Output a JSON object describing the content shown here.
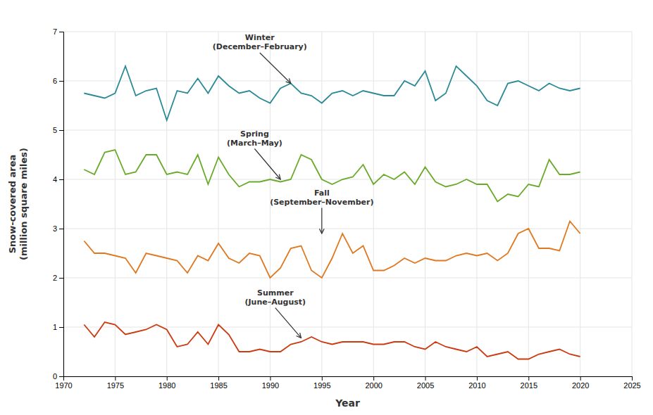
{
  "chart_data": {
    "type": "line",
    "x": [
      1972,
      1973,
      1974,
      1975,
      1976,
      1977,
      1978,
      1979,
      1980,
      1981,
      1982,
      1983,
      1984,
      1985,
      1986,
      1987,
      1988,
      1989,
      1990,
      1991,
      1992,
      1993,
      1994,
      1995,
      1996,
      1997,
      1998,
      1999,
      2000,
      2001,
      2002,
      2003,
      2004,
      2005,
      2006,
      2007,
      2008,
      2009,
      2010,
      2011,
      2012,
      2013,
      2014,
      2015,
      2016,
      2017,
      2018,
      2019,
      2020
    ],
    "series": [
      {
        "color": "#2b8a96",
        "values": [
          5.75,
          5.7,
          5.65,
          5.75,
          6.3,
          5.7,
          5.8,
          5.85,
          5.2,
          5.8,
          5.75,
          6.05,
          5.75,
          6.1,
          5.9,
          5.75,
          5.8,
          5.65,
          5.55,
          5.85,
          5.95,
          5.75,
          5.7,
          5.55,
          5.75,
          5.8,
          5.7,
          5.8,
          5.75,
          5.7,
          5.7,
          6.0,
          5.9,
          6.2,
          5.6,
          5.75,
          6.3,
          6.1,
          5.9,
          5.6,
          5.5,
          5.95,
          6.0,
          5.9,
          5.8,
          5.95,
          5.85,
          5.8,
          5.85
        ]
      },
      {
        "color": "#6aaa2a",
        "values": [
          4.2,
          4.1,
          4.55,
          4.6,
          4.1,
          4.15,
          4.5,
          4.5,
          4.1,
          4.15,
          4.1,
          4.5,
          3.9,
          4.45,
          4.1,
          3.85,
          3.95,
          3.95,
          4.0,
          3.95,
          4.0,
          4.5,
          4.4,
          4.0,
          3.9,
          4.0,
          4.05,
          4.3,
          3.9,
          4.1,
          4.0,
          4.15,
          3.9,
          4.25,
          3.95,
          3.85,
          3.9,
          4.0,
          3.9,
          3.9,
          3.55,
          3.7,
          3.65,
          3.9,
          3.85,
          4.4,
          4.1,
          4.1,
          4.15
        ]
      },
      {
        "color": "#e07820",
        "values": [
          2.75,
          2.5,
          2.5,
          2.45,
          2.4,
          2.1,
          2.5,
          2.45,
          2.4,
          2.35,
          2.1,
          2.45,
          2.35,
          2.7,
          2.4,
          2.3,
          2.5,
          2.45,
          2.0,
          2.2,
          2.6,
          2.65,
          2.15,
          2.0,
          2.4,
          2.9,
          2.5,
          2.65,
          2.15,
          2.15,
          2.25,
          2.4,
          2.3,
          2.4,
          2.35,
          2.35,
          2.45,
          2.5,
          2.45,
          2.5,
          2.35,
          2.5,
          2.9,
          3.0,
          2.6,
          2.6,
          2.55,
          3.15,
          2.9
        ]
      },
      {
        "color": "#cc3a10",
        "values": [
          1.05,
          0.8,
          1.1,
          1.05,
          0.85,
          0.9,
          0.95,
          1.05,
          0.95,
          0.6,
          0.65,
          0.9,
          0.65,
          1.05,
          0.85,
          0.5,
          0.5,
          0.55,
          0.5,
          0.5,
          0.65,
          0.7,
          0.8,
          0.7,
          0.65,
          0.7,
          0.7,
          0.7,
          0.65,
          0.65,
          0.7,
          0.7,
          0.6,
          0.55,
          0.7,
          0.6,
          0.55,
          0.5,
          0.6,
          0.4,
          0.45,
          0.5,
          0.35,
          0.35,
          0.45,
          0.5,
          0.55,
          0.45,
          0.4
        ]
      }
    ],
    "x_label": "Year",
    "y_label": "Snow-covered area\n(million square miles)",
    "xlim": [
      1970,
      2025
    ],
    "ylim": [
      0,
      7
    ],
    "xticks": [
      1970,
      1975,
      1980,
      1985,
      1990,
      1995,
      2000,
      2005,
      2010,
      2015,
      2020,
      2025
    ],
    "yticks": [
      0,
      1,
      2,
      3,
      4,
      5,
      6,
      7
    ],
    "grid": true,
    "annotations": [
      {
        "text": "Winter\n(December–February)",
        "x": 1992,
        "y": 5.95,
        "text_x": 1989,
        "text_y": 6.6
      },
      {
        "text": "Spring\n(March–May)",
        "x": 1991,
        "y": 4.0,
        "text_x": 1988.5,
        "text_y": 4.65
      },
      {
        "text": "Fall\n(September–November)",
        "x": 1995,
        "y": 2.9,
        "text_x": 1995,
        "text_y": 3.45
      },
      {
        "text": "Summer\n(June–August)",
        "x": 1993,
        "y": 0.78,
        "text_x": 1990.5,
        "text_y": 1.42
      }
    ]
  }
}
